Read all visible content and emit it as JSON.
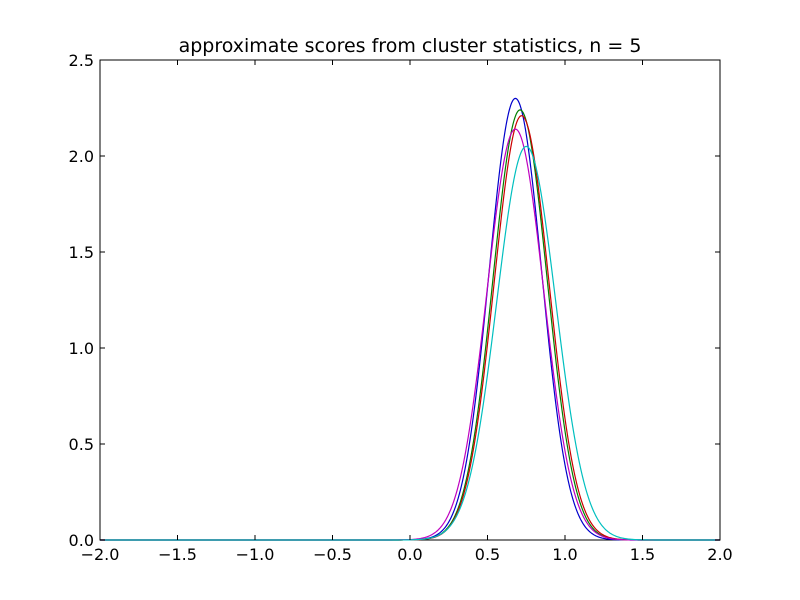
{
  "chart_data": {
    "type": "line",
    "title": "approximate scores from cluster statistics, n = 5",
    "xlabel": "",
    "ylabel": "",
    "xlim": [
      -2.0,
      2.0
    ],
    "ylim": [
      0.0,
      2.5
    ],
    "xticks": [
      -2.0,
      -1.5,
      -1.0,
      -0.5,
      0.0,
      0.5,
      1.0,
      1.5,
      2.0
    ],
    "xtick_labels": [
      "−2.0",
      "−1.5",
      "−1.0",
      "−0.5",
      "0.0",
      "0.5",
      "1.0",
      "1.5",
      "2.0"
    ],
    "yticks": [
      0.0,
      0.5,
      1.0,
      1.5,
      2.0,
      2.5
    ],
    "ytick_labels": [
      "0.0",
      "0.5",
      "1.0",
      "1.5",
      "2.0",
      "2.5"
    ],
    "grid": false,
    "series": [
      {
        "color": "#0000cc",
        "peak_x": 0.68,
        "peak_y": 2.3,
        "sigma": 0.17
      },
      {
        "color": "#007f00",
        "peak_x": 0.71,
        "peak_y": 2.24,
        "sigma": 0.175
      },
      {
        "color": "#cc0000",
        "peak_x": 0.72,
        "peak_y": 2.21,
        "sigma": 0.177
      },
      {
        "color": "#bf00bf",
        "peak_x": 0.68,
        "peak_y": 2.14,
        "sigma": 0.183
      },
      {
        "color": "#00bfbf",
        "peak_x": 0.75,
        "peak_y": 2.05,
        "sigma": 0.19
      }
    ]
  }
}
